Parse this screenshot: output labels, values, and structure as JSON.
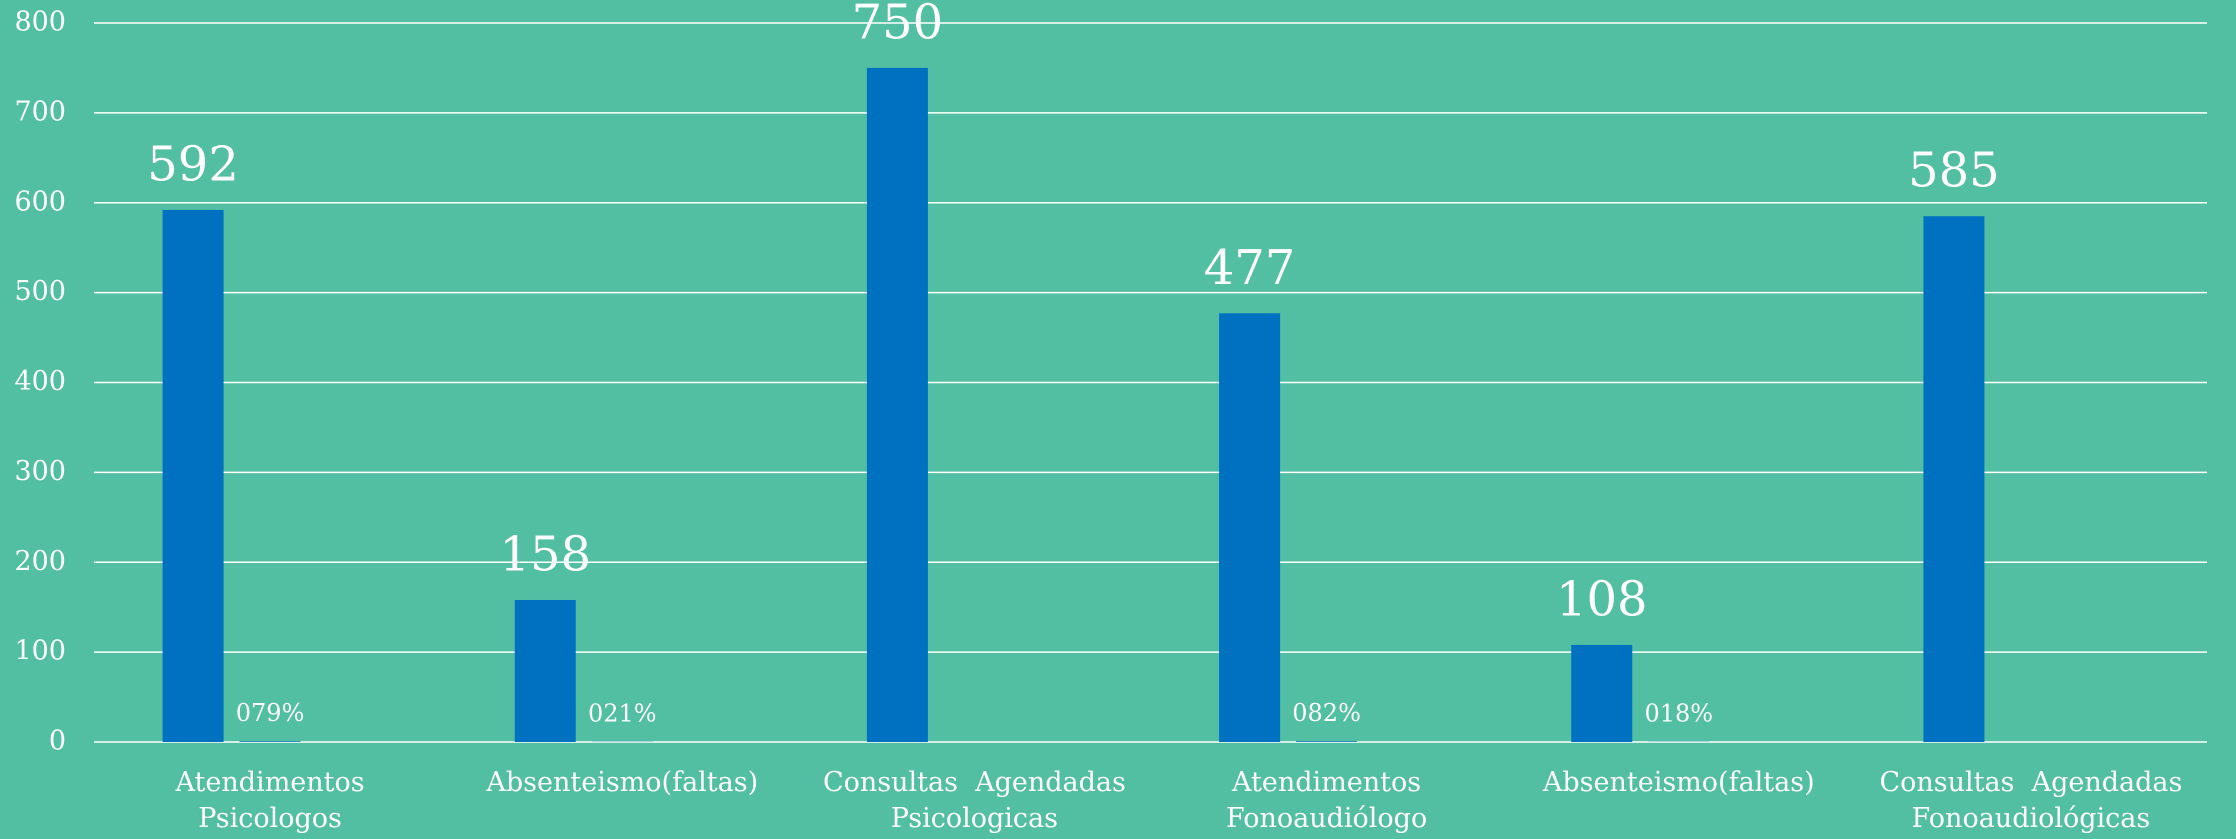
{
  "chart_data": {
    "type": "bar",
    "categories": [
      "Atendimentos Psicologos",
      "Absenteismo(faltas)",
      "Consultas  Agendadas Psicologicas",
      "Atendimentos Fonoaudiólogo",
      "Absenteismo(faltas)",
      "Consultas  Agendadas Fonoaudiológicas"
    ],
    "series": [
      {
        "color": "#0070c0",
        "values": [
          592,
          158,
          750,
          477,
          108,
          585
        ]
      },
      {
        "color": "#0070c0",
        "values": [
          0.79,
          0.21,
          null,
          0.82,
          0.18,
          null
        ],
        "value_labels": [
          "079%",
          "021%",
          null,
          "082%",
          "018%",
          null
        ]
      }
    ],
    "ylim": [
      0,
      800
    ],
    "yticks": [
      0,
      100,
      200,
      300,
      400,
      500,
      600,
      700,
      800
    ],
    "grid": true
  }
}
